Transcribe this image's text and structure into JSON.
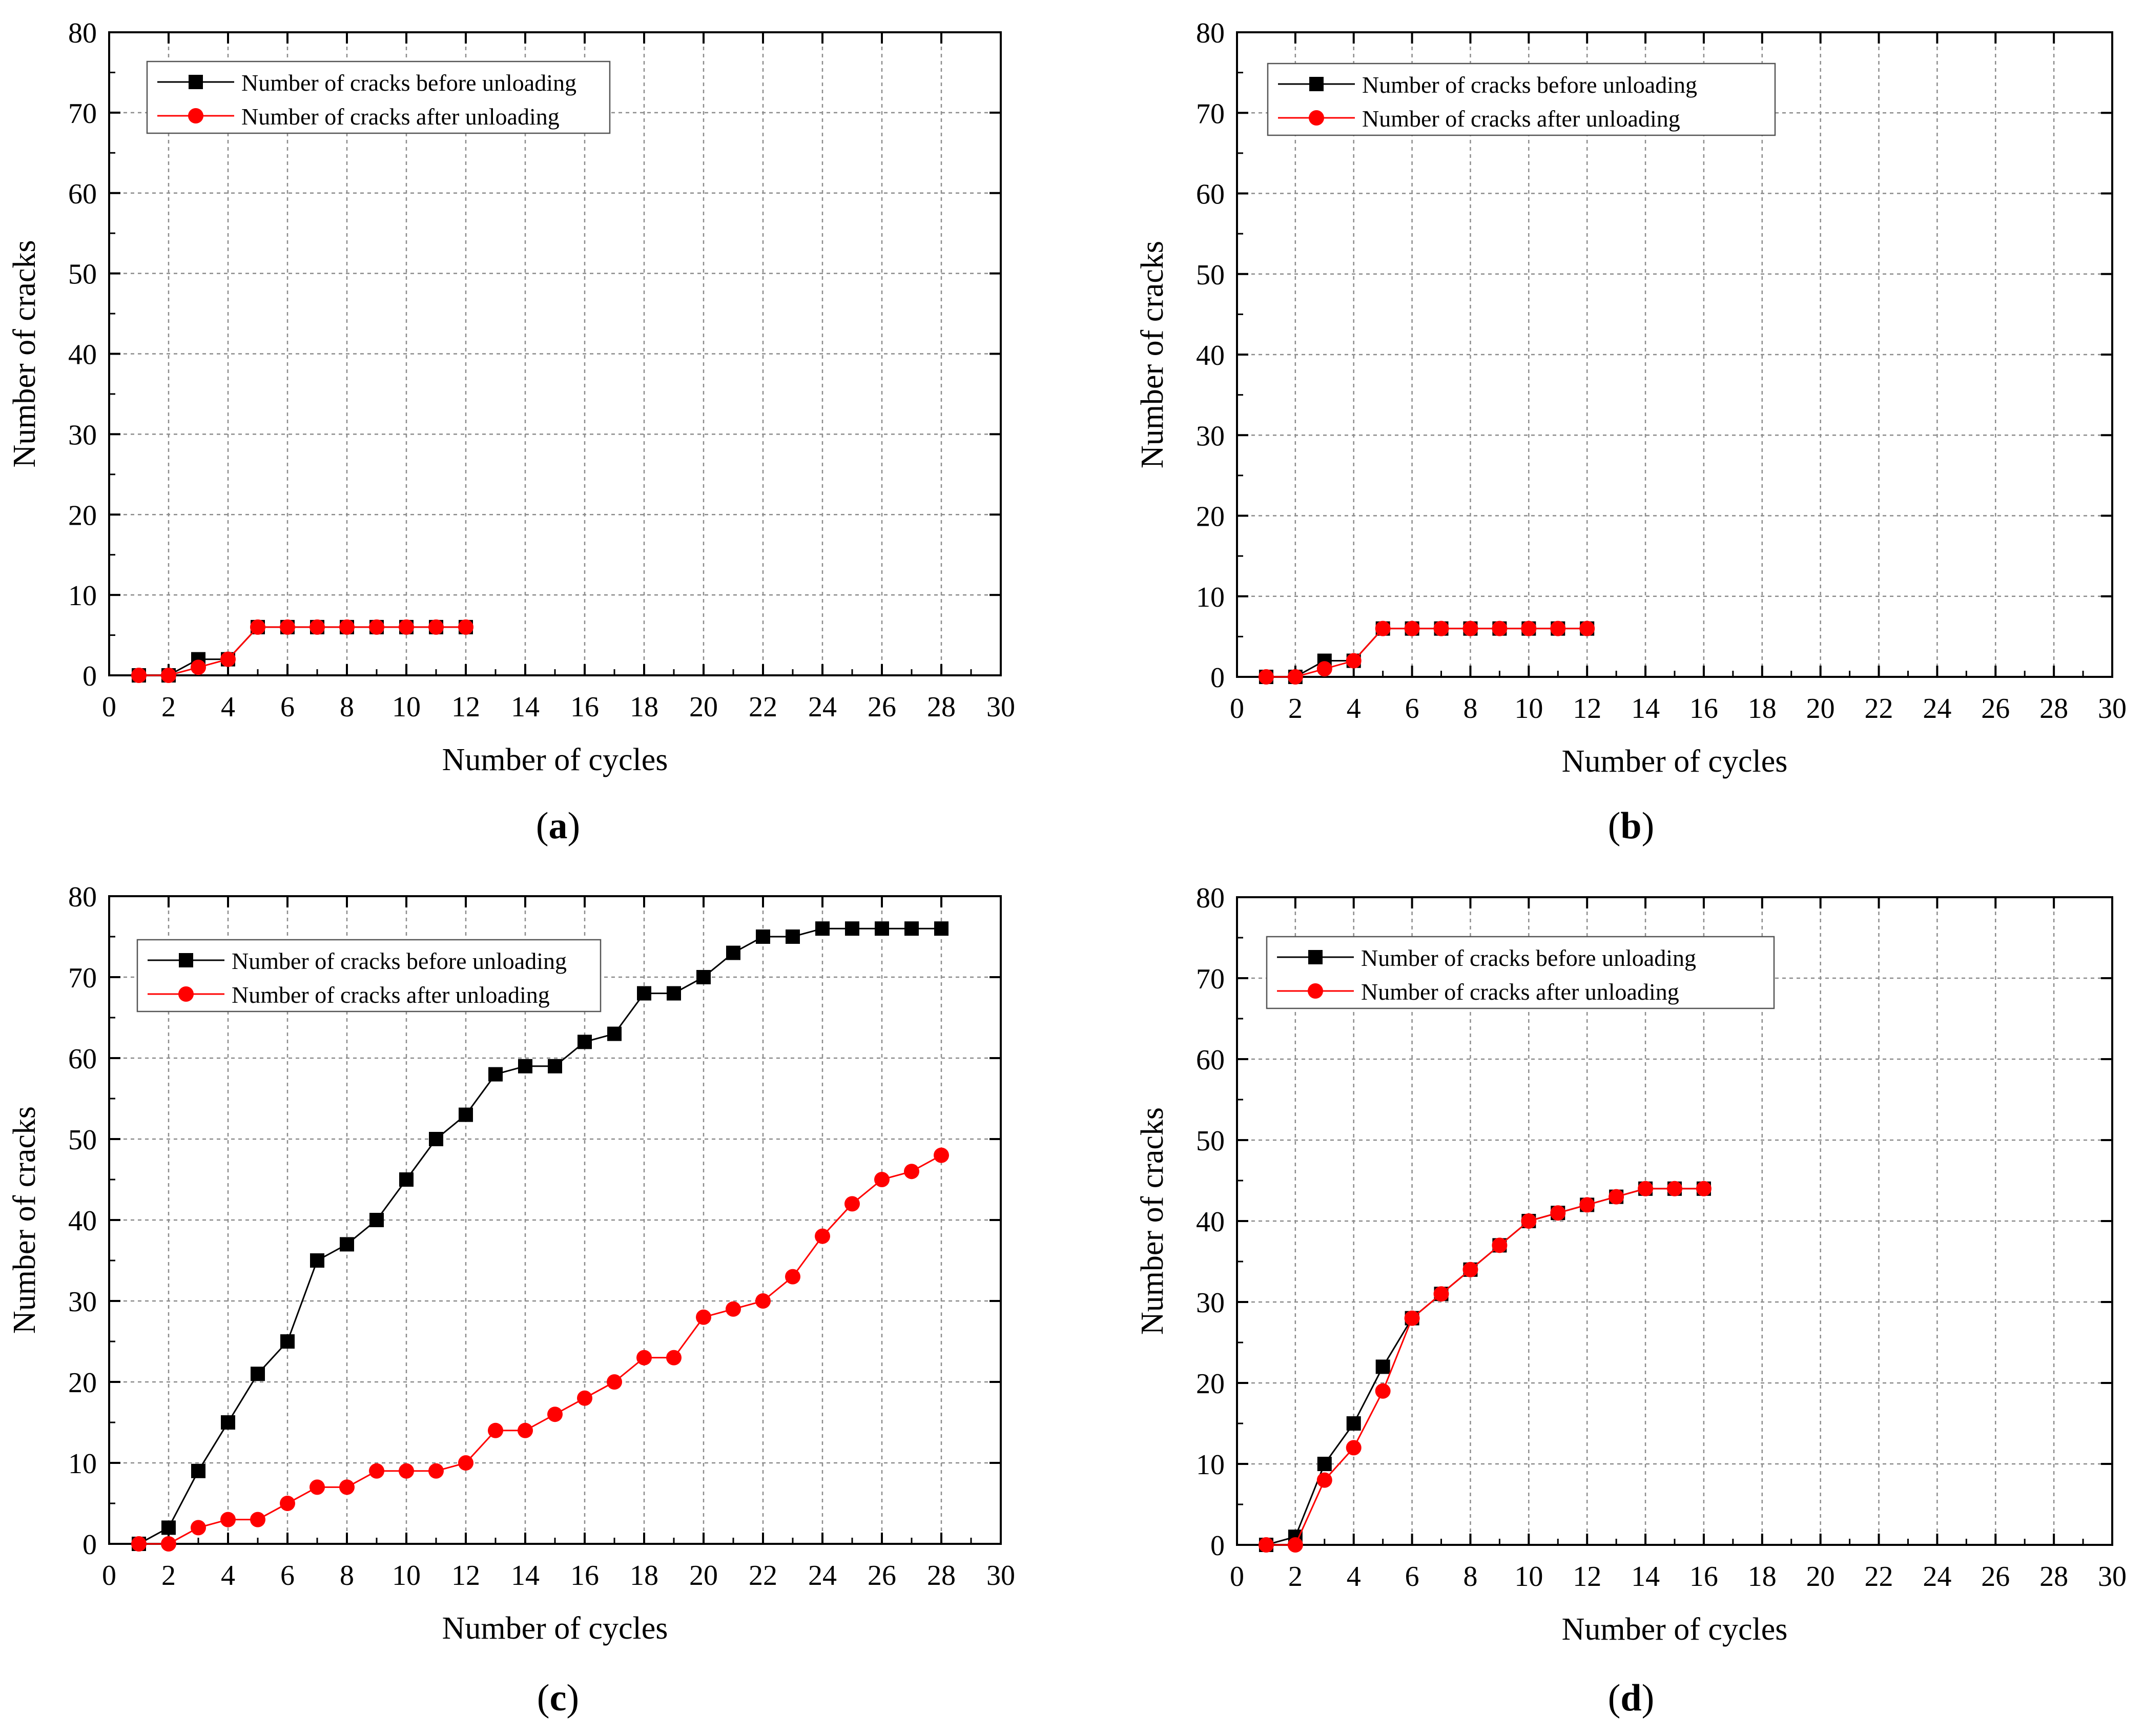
{
  "figure": {
    "panels": [
      {
        "id": "a",
        "label": "a"
      },
      {
        "id": "b",
        "label": "b"
      },
      {
        "id": "c",
        "label": "c"
      },
      {
        "id": "d",
        "label": "d"
      }
    ]
  },
  "colors": {
    "series_before": "#000000",
    "series_after": "#ff0000",
    "grid": "#8c8c8c",
    "axis": "#000000"
  },
  "chart_data": [
    {
      "panel": "a",
      "type": "line",
      "title": "",
      "xlabel": "Number of cycles",
      "ylabel": "Number of cracks",
      "xlim": [
        0,
        30
      ],
      "ylim": [
        0,
        80
      ],
      "xticks": [
        0,
        2,
        4,
        6,
        8,
        10,
        12,
        14,
        16,
        18,
        20,
        22,
        24,
        26,
        28,
        30
      ],
      "yticks": [
        0,
        10,
        20,
        30,
        40,
        50,
        60,
        70,
        80
      ],
      "grid": true,
      "legend_position": "top-left",
      "series": [
        {
          "name": "Number of cracks before unloading",
          "marker": "square",
          "color": "#000000",
          "x": [
            1,
            2,
            3,
            4,
            5,
            6,
            7,
            8,
            9,
            10,
            11,
            12
          ],
          "y": [
            0,
            0,
            2,
            2,
            6,
            6,
            6,
            6,
            6,
            6,
            6,
            6
          ]
        },
        {
          "name": "Number of cracks after unloading",
          "marker": "circle",
          "color": "#ff0000",
          "x": [
            1,
            2,
            3,
            4,
            5,
            6,
            7,
            8,
            9,
            10,
            11,
            12
          ],
          "y": [
            0,
            0,
            1,
            2,
            6,
            6,
            6,
            6,
            6,
            6,
            6,
            6
          ]
        }
      ]
    },
    {
      "panel": "b",
      "type": "line",
      "title": "",
      "xlabel": "Number of cycles",
      "ylabel": "Number of cracks",
      "xlim": [
        0,
        30
      ],
      "ylim": [
        0,
        80
      ],
      "xticks": [
        0,
        2,
        4,
        6,
        8,
        10,
        12,
        14,
        16,
        18,
        20,
        22,
        24,
        26,
        28,
        30
      ],
      "yticks": [
        0,
        10,
        20,
        30,
        40,
        50,
        60,
        70,
        80
      ],
      "grid": true,
      "legend_position": "top-left",
      "series": [
        {
          "name": "Number of cracks before unloading",
          "marker": "square",
          "color": "#000000",
          "x": [
            1,
            2,
            3,
            4,
            5,
            6,
            7,
            8,
            9,
            10,
            11,
            12
          ],
          "y": [
            0,
            0,
            2,
            2,
            6,
            6,
            6,
            6,
            6,
            6,
            6,
            6
          ]
        },
        {
          "name": "Number of cracks after unloading",
          "marker": "circle",
          "color": "#ff0000",
          "x": [
            1,
            2,
            3,
            4,
            5,
            6,
            7,
            8,
            9,
            10,
            11,
            12
          ],
          "y": [
            0,
            0,
            1,
            2,
            6,
            6,
            6,
            6,
            6,
            6,
            6,
            6
          ]
        }
      ]
    },
    {
      "panel": "c",
      "type": "line",
      "title": "",
      "xlabel": "Number of cycles",
      "ylabel": "Number of cracks",
      "xlim": [
        0,
        30
      ],
      "ylim": [
        0,
        80
      ],
      "xticks": [
        0,
        2,
        4,
        6,
        8,
        10,
        12,
        14,
        16,
        18,
        20,
        22,
        24,
        26,
        28,
        30
      ],
      "yticks": [
        0,
        10,
        20,
        30,
        40,
        50,
        60,
        70,
        80
      ],
      "grid": true,
      "legend_position": "top-left",
      "series": [
        {
          "name": "Number of cracks before unloading",
          "marker": "square",
          "color": "#000000",
          "x": [
            1,
            2,
            3,
            4,
            5,
            6,
            7,
            8,
            9,
            10,
            11,
            12,
            13,
            14,
            15,
            16,
            17,
            18,
            19,
            20,
            21,
            22,
            23,
            24,
            25,
            26,
            27,
            28
          ],
          "y": [
            0,
            2,
            9,
            15,
            21,
            25,
            35,
            37,
            40,
            45,
            50,
            53,
            58,
            59,
            59,
            62,
            63,
            68,
            68,
            70,
            73,
            75,
            75,
            76,
            76,
            76,
            76,
            76
          ]
        },
        {
          "name": "Number of cracks after unloading",
          "marker": "circle",
          "color": "#ff0000",
          "x": [
            1,
            2,
            3,
            4,
            5,
            6,
            7,
            8,
            9,
            10,
            11,
            12,
            13,
            14,
            15,
            16,
            17,
            18,
            19,
            20,
            21,
            22,
            23,
            24,
            25,
            26,
            27,
            28
          ],
          "y": [
            0,
            0,
            2,
            3,
            3,
            5,
            7,
            7,
            9,
            9,
            9,
            10,
            14,
            14,
            16,
            18,
            20,
            23,
            23,
            28,
            29,
            30,
            33,
            38,
            42,
            45,
            46,
            48
          ]
        }
      ]
    },
    {
      "panel": "d",
      "type": "line",
      "title": "",
      "xlabel": "Number of cycles",
      "ylabel": "Number of cracks",
      "xlim": [
        0,
        30
      ],
      "ylim": [
        0,
        80
      ],
      "xticks": [
        0,
        2,
        4,
        6,
        8,
        10,
        12,
        14,
        16,
        18,
        20,
        22,
        24,
        26,
        28,
        30
      ],
      "yticks": [
        0,
        10,
        20,
        30,
        40,
        50,
        60,
        70,
        80
      ],
      "grid": true,
      "legend_position": "top-left",
      "series": [
        {
          "name": "Number of cracks before unloading",
          "marker": "square",
          "color": "#000000",
          "x": [
            1,
            2,
            3,
            4,
            5,
            6,
            7,
            8,
            9,
            10,
            11,
            12,
            13,
            14,
            15,
            16
          ],
          "y": [
            0,
            1,
            10,
            15,
            22,
            28,
            31,
            34,
            37,
            40,
            41,
            42,
            43,
            44,
            44,
            44
          ]
        },
        {
          "name": "Number of cracks after unloading",
          "marker": "circle",
          "color": "#ff0000",
          "x": [
            1,
            2,
            3,
            4,
            5,
            6,
            7,
            8,
            9,
            10,
            11,
            12,
            13,
            14,
            15,
            16
          ],
          "y": [
            0,
            0,
            8,
            12,
            19,
            28,
            31,
            34,
            37,
            40,
            41,
            42,
            43,
            44,
            44,
            44
          ]
        }
      ]
    }
  ]
}
